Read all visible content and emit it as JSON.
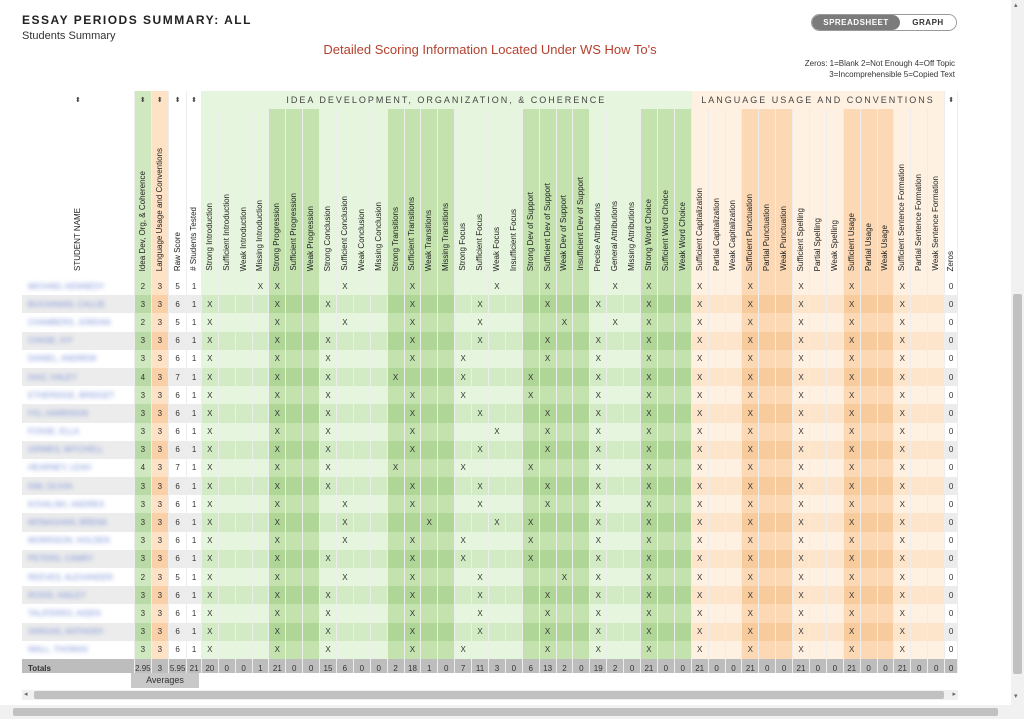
{
  "header": {
    "title": "ESSAY PERIODS SUMMARY: ALL",
    "subtitle": "Students Summary",
    "notice": "Detailed Scoring Information Located Under WS How To's"
  },
  "view_toggle": {
    "active": "SPREADSHEET",
    "inactive": "GRAPH"
  },
  "zero_legend": {
    "line1": "Zeros: 1=Blank 2=Not Enough 4=Off Topic",
    "line2": "3=Incomprehensible    5=Copied Text"
  },
  "sort_glyph": "⬍",
  "groups": {
    "ideas": "IDEA DEVELOPMENT, ORGANIZATION, & COHERENCE",
    "language": "LANGUAGE USAGE AND CONVENTIONS"
  },
  "columns": {
    "student_name": "STUDENT NAME",
    "idea_score": "Idea Dev, Org, & Coherence",
    "lang_score": "Language Usage and Conventions",
    "raw_score": "Raw Score",
    "students_tested": "# Students Tested",
    "zeros": "Zeros",
    "idea_criteria": [
      "Strong Introduction",
      "Sufficient Introduction",
      "Weak Introduction",
      "Missing Introduction",
      "Strong Progression",
      "Sufficient Progression",
      "Weak Progression",
      "Strong Conclusion",
      "Sufficient Conclusion",
      "Weak Conclusion",
      "Missing Conclusion",
      "Strong Transitions",
      "Sufficient Transitions",
      "Weak Transitions",
      "Missing Transitions",
      "Strong Focus",
      "Sufficient Focus",
      "Weak Focus",
      "Insufficient Focus",
      "Strong Dev of Support",
      "Sufficient Dev of Support",
      "Weak Dev of Support",
      "Insufficient Dev of Support",
      "Precise Attributions",
      "General Attributions",
      "Missing Attributions",
      "Strong Word Choice",
      "Sufficient Word Choice",
      "Weak Word Choice"
    ],
    "lang_criteria": [
      "Sufficient Capitalization",
      "Partial Capitalization",
      "Weak Capitalization",
      "Sufficient Punctuation",
      "Partial Punctuation",
      "Weak Punctuation",
      "Sufficient Spelling",
      "Partial Spelling",
      "Weak Spelling",
      "Sufficient Usage",
      "Partial Usage",
      "Weak Usage",
      "Sufficient Sentence Formation",
      "Partial Sentence Formation",
      "Weak Sentence Formation"
    ]
  },
  "mark": "X",
  "students": [
    {
      "name": "MICHAEL KENNEDY",
      "idea": "2",
      "lang": "3",
      "raw": "5",
      "tested": "1",
      "zeros": "0",
      "ideas": [
        3,
        4,
        8,
        12,
        17,
        20,
        24,
        26
      ],
      "langs": [
        0,
        3,
        6,
        9,
        12
      ]
    },
    {
      "name": "BUCHANAN, CALLIE",
      "idea": "3",
      "lang": "3",
      "raw": "6",
      "tested": "1",
      "zeros": "0",
      "ideas": [
        0,
        4,
        7,
        12,
        16,
        20,
        23,
        26
      ],
      "langs": [
        0,
        3,
        6,
        9,
        12
      ]
    },
    {
      "name": "CHAMBERS, JORDAN",
      "idea": "2",
      "lang": "3",
      "raw": "5",
      "tested": "1",
      "zeros": "0",
      "ideas": [
        0,
        4,
        8,
        12,
        16,
        21,
        24,
        26
      ],
      "langs": [
        0,
        3,
        6,
        9,
        12
      ]
    },
    {
      "name": "CHASE, IVY",
      "idea": "3",
      "lang": "3",
      "raw": "6",
      "tested": "1",
      "zeros": "0",
      "ideas": [
        0,
        4,
        7,
        12,
        16,
        20,
        23,
        26
      ],
      "langs": [
        0,
        3,
        6,
        9,
        12
      ]
    },
    {
      "name": "DANIEL, ANDREW",
      "idea": "3",
      "lang": "3",
      "raw": "6",
      "tested": "1",
      "zeros": "0",
      "ideas": [
        0,
        4,
        7,
        12,
        15,
        20,
        23,
        26
      ],
      "langs": [
        0,
        3,
        6,
        9,
        12
      ]
    },
    {
      "name": "DIAZ, HALEY",
      "idea": "4",
      "lang": "3",
      "raw": "7",
      "tested": "1",
      "zeros": "0",
      "ideas": [
        0,
        4,
        7,
        11,
        15,
        19,
        23,
        26
      ],
      "langs": [
        0,
        3,
        6,
        9,
        12
      ]
    },
    {
      "name": "ETHERIDGE, BRIDGET",
      "idea": "3",
      "lang": "3",
      "raw": "6",
      "tested": "1",
      "zeros": "0",
      "ideas": [
        0,
        4,
        7,
        12,
        15,
        19,
        23,
        26
      ],
      "langs": [
        0,
        3,
        6,
        9,
        12
      ]
    },
    {
      "name": "FIG, HARRISON",
      "idea": "3",
      "lang": "3",
      "raw": "6",
      "tested": "1",
      "zeros": "0",
      "ideas": [
        0,
        4,
        7,
        12,
        16,
        20,
        23,
        26
      ],
      "langs": [
        0,
        3,
        6,
        9,
        12
      ]
    },
    {
      "name": "FOSSE, ELLA",
      "idea": "3",
      "lang": "3",
      "raw": "6",
      "tested": "1",
      "zeros": "0",
      "ideas": [
        0,
        4,
        7,
        12,
        17,
        20,
        23,
        26
      ],
      "langs": [
        0,
        3,
        6,
        9,
        12
      ]
    },
    {
      "name": "GRIMES, MITCHELL",
      "idea": "3",
      "lang": "3",
      "raw": "6",
      "tested": "1",
      "zeros": "0",
      "ideas": [
        0,
        4,
        7,
        12,
        16,
        20,
        23,
        26
      ],
      "langs": [
        0,
        3,
        6,
        9,
        12
      ]
    },
    {
      "name": "HEARNEY, LEAH",
      "idea": "4",
      "lang": "3",
      "raw": "7",
      "tested": "1",
      "zeros": "0",
      "ideas": [
        0,
        4,
        7,
        11,
        15,
        19,
        23,
        26
      ],
      "langs": [
        0,
        3,
        6,
        9,
        12
      ]
    },
    {
      "name": "KIM, OLIVIA",
      "idea": "3",
      "lang": "3",
      "raw": "6",
      "tested": "1",
      "zeros": "0",
      "ideas": [
        0,
        4,
        7,
        12,
        16,
        20,
        23,
        26
      ],
      "langs": [
        0,
        3,
        6,
        9,
        12
      ]
    },
    {
      "name": "KOVALSKI, ANDREA",
      "idea": "3",
      "lang": "3",
      "raw": "6",
      "tested": "1",
      "zeros": "0",
      "ideas": [
        0,
        4,
        8,
        12,
        16,
        20,
        23,
        26
      ],
      "langs": [
        0,
        3,
        6,
        9,
        12
      ]
    },
    {
      "name": "MONAGHAN, BRENA",
      "idea": "3",
      "lang": "3",
      "raw": "6",
      "tested": "1",
      "zeros": "0",
      "ideas": [
        0,
        4,
        8,
        13,
        17,
        19,
        23,
        26
      ],
      "langs": [
        0,
        3,
        6,
        9,
        12
      ]
    },
    {
      "name": "MORRISON, HOLDEN",
      "idea": "3",
      "lang": "3",
      "raw": "6",
      "tested": "1",
      "zeros": "0",
      "ideas": [
        0,
        4,
        8,
        12,
        15,
        19,
        23,
        26
      ],
      "langs": [
        0,
        3,
        6,
        9,
        12
      ]
    },
    {
      "name": "PETERS, CAMRY",
      "idea": "3",
      "lang": "3",
      "raw": "6",
      "tested": "1",
      "zeros": "0",
      "ideas": [
        0,
        4,
        7,
        12,
        15,
        19,
        23,
        26
      ],
      "langs": [
        0,
        3,
        6,
        9,
        12
      ]
    },
    {
      "name": "REEVES, ALEXANDER",
      "idea": "2",
      "lang": "3",
      "raw": "5",
      "tested": "1",
      "zeros": "0",
      "ideas": [
        0,
        4,
        8,
        12,
        16,
        21,
        23,
        26
      ],
      "langs": [
        0,
        3,
        6,
        9,
        12
      ]
    },
    {
      "name": "ROSSI, HAILEY",
      "idea": "3",
      "lang": "3",
      "raw": "6",
      "tested": "1",
      "zeros": "0",
      "ideas": [
        0,
        4,
        7,
        12,
        16,
        20,
        23,
        26
      ],
      "langs": [
        0,
        3,
        6,
        9,
        12
      ]
    },
    {
      "name": "TALIFERRO, AIDEN",
      "idea": "3",
      "lang": "3",
      "raw": "6",
      "tested": "1",
      "zeros": "0",
      "ideas": [
        0,
        4,
        7,
        12,
        16,
        20,
        23,
        26
      ],
      "langs": [
        0,
        3,
        6,
        9,
        12
      ]
    },
    {
      "name": "VARGAS, ANTHONY",
      "idea": "3",
      "lang": "3",
      "raw": "6",
      "tested": "1",
      "zeros": "0",
      "ideas": [
        0,
        4,
        7,
        12,
        16,
        20,
        23,
        26
      ],
      "langs": [
        0,
        3,
        6,
        9,
        12
      ]
    },
    {
      "name": "WALL, THOMAS",
      "idea": "3",
      "lang": "3",
      "raw": "6",
      "tested": "1",
      "zeros": "0",
      "ideas": [
        0,
        4,
        7,
        12,
        15,
        20,
        23,
        26
      ],
      "langs": [
        0,
        3,
        6,
        9,
        12
      ]
    }
  ],
  "totals": {
    "label": "Totals",
    "idea": "2.95",
    "lang": "3",
    "raw": "5.95",
    "tested": "21",
    "zeros": "0",
    "ideas": [
      "20",
      "0",
      "0",
      "1",
      "21",
      "0",
      "0",
      "15",
      "6",
      "0",
      "0",
      "2",
      "18",
      "1",
      "0",
      "7",
      "11",
      "3",
      "0",
      "6",
      "13",
      "2",
      "0",
      "19",
      "2",
      "0",
      "21",
      "0",
      "0"
    ],
    "langs": [
      "21",
      "0",
      "0",
      "21",
      "0",
      "0",
      "21",
      "0",
      "0",
      "21",
      "0",
      "0",
      "21",
      "0",
      "0"
    ]
  },
  "averages_label": "Averages",
  "scroll": {
    "left_arrow": "◂",
    "right_arrow": "▸",
    "up_arrow": "▴",
    "down_arrow": "▾"
  }
}
